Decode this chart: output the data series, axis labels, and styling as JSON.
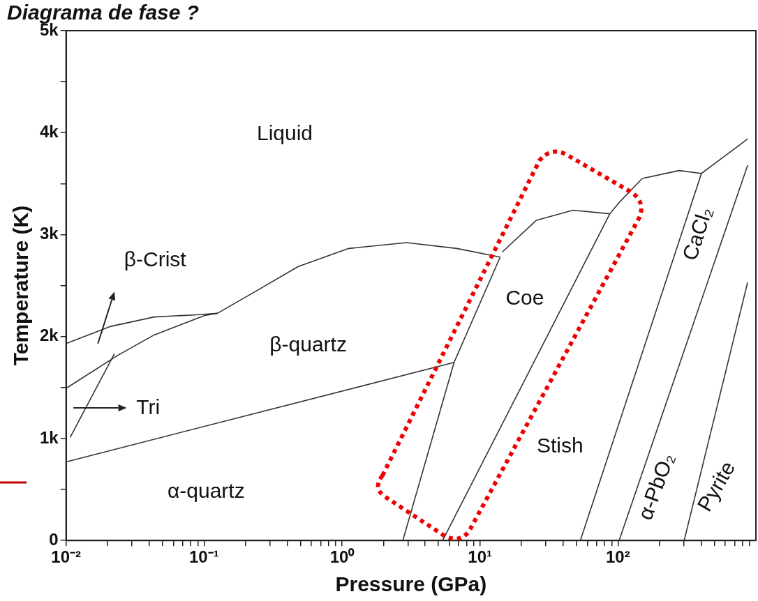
{
  "chart_data": {
    "type": "line",
    "title": "Diagrama de fase ?",
    "xlabel": "Pressure (GPa)",
    "ylabel": "Temperature (K)",
    "log": "x",
    "grid": false,
    "legend": false,
    "marker": "none",
    "line_style": "solid",
    "xlim": [
      0.01,
      1000
    ],
    "ylim": [
      0,
      5000
    ],
    "xticks": [
      {
        "value": 0.01,
        "label": "10⁻²"
      },
      {
        "value": 0.02,
        "label": null
      },
      {
        "value": 0.03,
        "label": null
      },
      {
        "value": 0.04,
        "label": null
      },
      {
        "value": 0.05,
        "label": null
      },
      {
        "value": 0.06,
        "label": null
      },
      {
        "value": 0.07,
        "label": null
      },
      {
        "value": 0.08,
        "label": null
      },
      {
        "value": 0.09,
        "label": null
      },
      {
        "value": 0.1,
        "label": "10⁻¹"
      },
      {
        "value": 0.2,
        "label": null
      },
      {
        "value": 0.3,
        "label": null
      },
      {
        "value": 0.4,
        "label": null
      },
      {
        "value": 0.5,
        "label": null
      },
      {
        "value": 0.6,
        "label": null
      },
      {
        "value": 0.7,
        "label": null
      },
      {
        "value": 0.8,
        "label": null
      },
      {
        "value": 0.9,
        "label": null
      },
      {
        "value": 1,
        "label": "10⁰"
      },
      {
        "value": 2,
        "label": null
      },
      {
        "value": 3,
        "label": null
      },
      {
        "value": 4,
        "label": null
      },
      {
        "value": 5,
        "label": null
      },
      {
        "value": 6,
        "label": null
      },
      {
        "value": 7,
        "label": null
      },
      {
        "value": 8,
        "label": null
      },
      {
        "value": 9,
        "label": null
      },
      {
        "value": 10,
        "label": "10¹"
      },
      {
        "value": 20,
        "label": null
      },
      {
        "value": 30,
        "label": null
      },
      {
        "value": 40,
        "label": null
      },
      {
        "value": 50,
        "label": null
      },
      {
        "value": 60,
        "label": null
      },
      {
        "value": 70,
        "label": null
      },
      {
        "value": 80,
        "label": null
      },
      {
        "value": 90,
        "label": null
      },
      {
        "value": 100,
        "label": "10²"
      },
      {
        "value": 200,
        "label": null
      },
      {
        "value": 300,
        "label": null
      },
      {
        "value": 400,
        "label": null
      },
      {
        "value": 500,
        "label": null
      },
      {
        "value": 600,
        "label": null
      },
      {
        "value": 700,
        "label": null
      },
      {
        "value": 800,
        "label": null
      },
      {
        "value": 900,
        "label": null
      }
    ],
    "yticks": [
      {
        "value": 0,
        "label": "0"
      },
      {
        "value": 500,
        "label": null
      },
      {
        "value": 1000,
        "label": "1k"
      },
      {
        "value": 1500,
        "label": null
      },
      {
        "value": 2000,
        "label": "2k"
      },
      {
        "value": 2500,
        "label": null
      },
      {
        "value": 3000,
        "label": "3k"
      },
      {
        "value": 3500,
        "label": null
      },
      {
        "value": 4000,
        "label": "4k"
      },
      {
        "value": 4500,
        "label": null
      },
      {
        "value": 5000,
        "label": "5k"
      }
    ],
    "series": [
      {
        "color": "#333333",
        "x": [
          0.01,
          0.0211,
          0.0435,
          0.0893,
          0.125
        ],
        "values": [
          1931,
          2100,
          2192,
          2214,
          2228
        ]
      },
      {
        "color": "#333333",
        "x": [
          0.01,
          0.0238,
          0.0435,
          0.101,
          0.125,
          0.234,
          0.482,
          1.12,
          2.93,
          6.8,
          14.0
        ],
        "values": [
          1492,
          1818,
          2016,
          2207,
          2228,
          2440,
          2687,
          2864,
          2921,
          2864,
          2779
        ]
      },
      {
        "color": "#333333",
        "x": [
          0.0107,
          0.0224
        ],
        "values": [
          1011,
          1832
        ]
      },
      {
        "color": "#333333",
        "x": [
          0.01,
          6.49
        ],
        "values": [
          771,
          1747
        ]
      },
      {
        "color": "#333333",
        "x": [
          2.76,
          6.49,
          14.0
        ],
        "values": [
          0,
          1747,
          2779
        ]
      },
      {
        "color": "#333333",
        "x": [
          14.5,
          25.6,
          47.3,
          87.3,
          103.5,
          150,
          277,
          403,
          781,
          871
        ],
        "values": [
          2829,
          3140,
          3239,
          3204,
          3324,
          3550,
          3628,
          3600,
          3890,
          3939
        ]
      },
      {
        "color": "#333333",
        "x": [
          5.36,
          87.3
        ],
        "values": [
          0,
          3204
        ]
      },
      {
        "color": "#333333",
        "x": [
          53.4,
          403
        ],
        "values": [
          0,
          3600
        ]
      },
      {
        "color": "#333333",
        "x": [
          102,
          871
        ],
        "values": [
          0,
          3680
        ]
      },
      {
        "color": "#333333",
        "x": [
          302,
          871
        ],
        "values": [
          0,
          2532
        ]
      }
    ],
    "annotations": [
      "Liquid",
      "β-Crist",
      "β-quartz",
      "Tri",
      "Coe",
      "Stish",
      "α-quartz",
      "CaCl₂",
      "α-PbO₂",
      "Pyrite"
    ]
  }
}
